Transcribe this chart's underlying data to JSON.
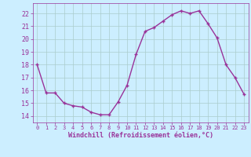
{
  "x": [
    0,
    1,
    2,
    3,
    4,
    5,
    6,
    7,
    8,
    9,
    10,
    11,
    12,
    13,
    14,
    15,
    16,
    17,
    18,
    19,
    20,
    21,
    22,
    23
  ],
  "y": [
    18.0,
    15.8,
    15.8,
    15.0,
    14.8,
    14.7,
    14.3,
    14.1,
    14.1,
    15.1,
    16.4,
    18.8,
    20.6,
    20.9,
    21.4,
    21.9,
    22.2,
    22.0,
    22.2,
    21.2,
    20.1,
    18.0,
    17.0,
    15.7
  ],
  "line_color": "#993399",
  "marker": "+",
  "bg_color": "#cceeff",
  "grid_color": "#aacccc",
  "xlabel": "Windchill (Refroidissement éolien,°C)",
  "xlabel_color": "#993399",
  "tick_color": "#993399",
  "ylim": [
    13.5,
    22.8
  ],
  "yticks": [
    14,
    15,
    16,
    17,
    18,
    19,
    20,
    21,
    22
  ],
  "xlim": [
    -0.5,
    23.5
  ],
  "xticks": [
    0,
    1,
    2,
    3,
    4,
    5,
    6,
    7,
    8,
    9,
    10,
    11,
    12,
    13,
    14,
    15,
    16,
    17,
    18,
    19,
    20,
    21,
    22,
    23
  ],
  "title_fontsize": 5.0,
  "xlabel_fontsize": 6.0,
  "ylabel_fontsize": 6.0,
  "xtick_fontsize": 5.0,
  "ytick_fontsize": 6.0,
  "linewidth": 1.0,
  "markersize": 3.5
}
